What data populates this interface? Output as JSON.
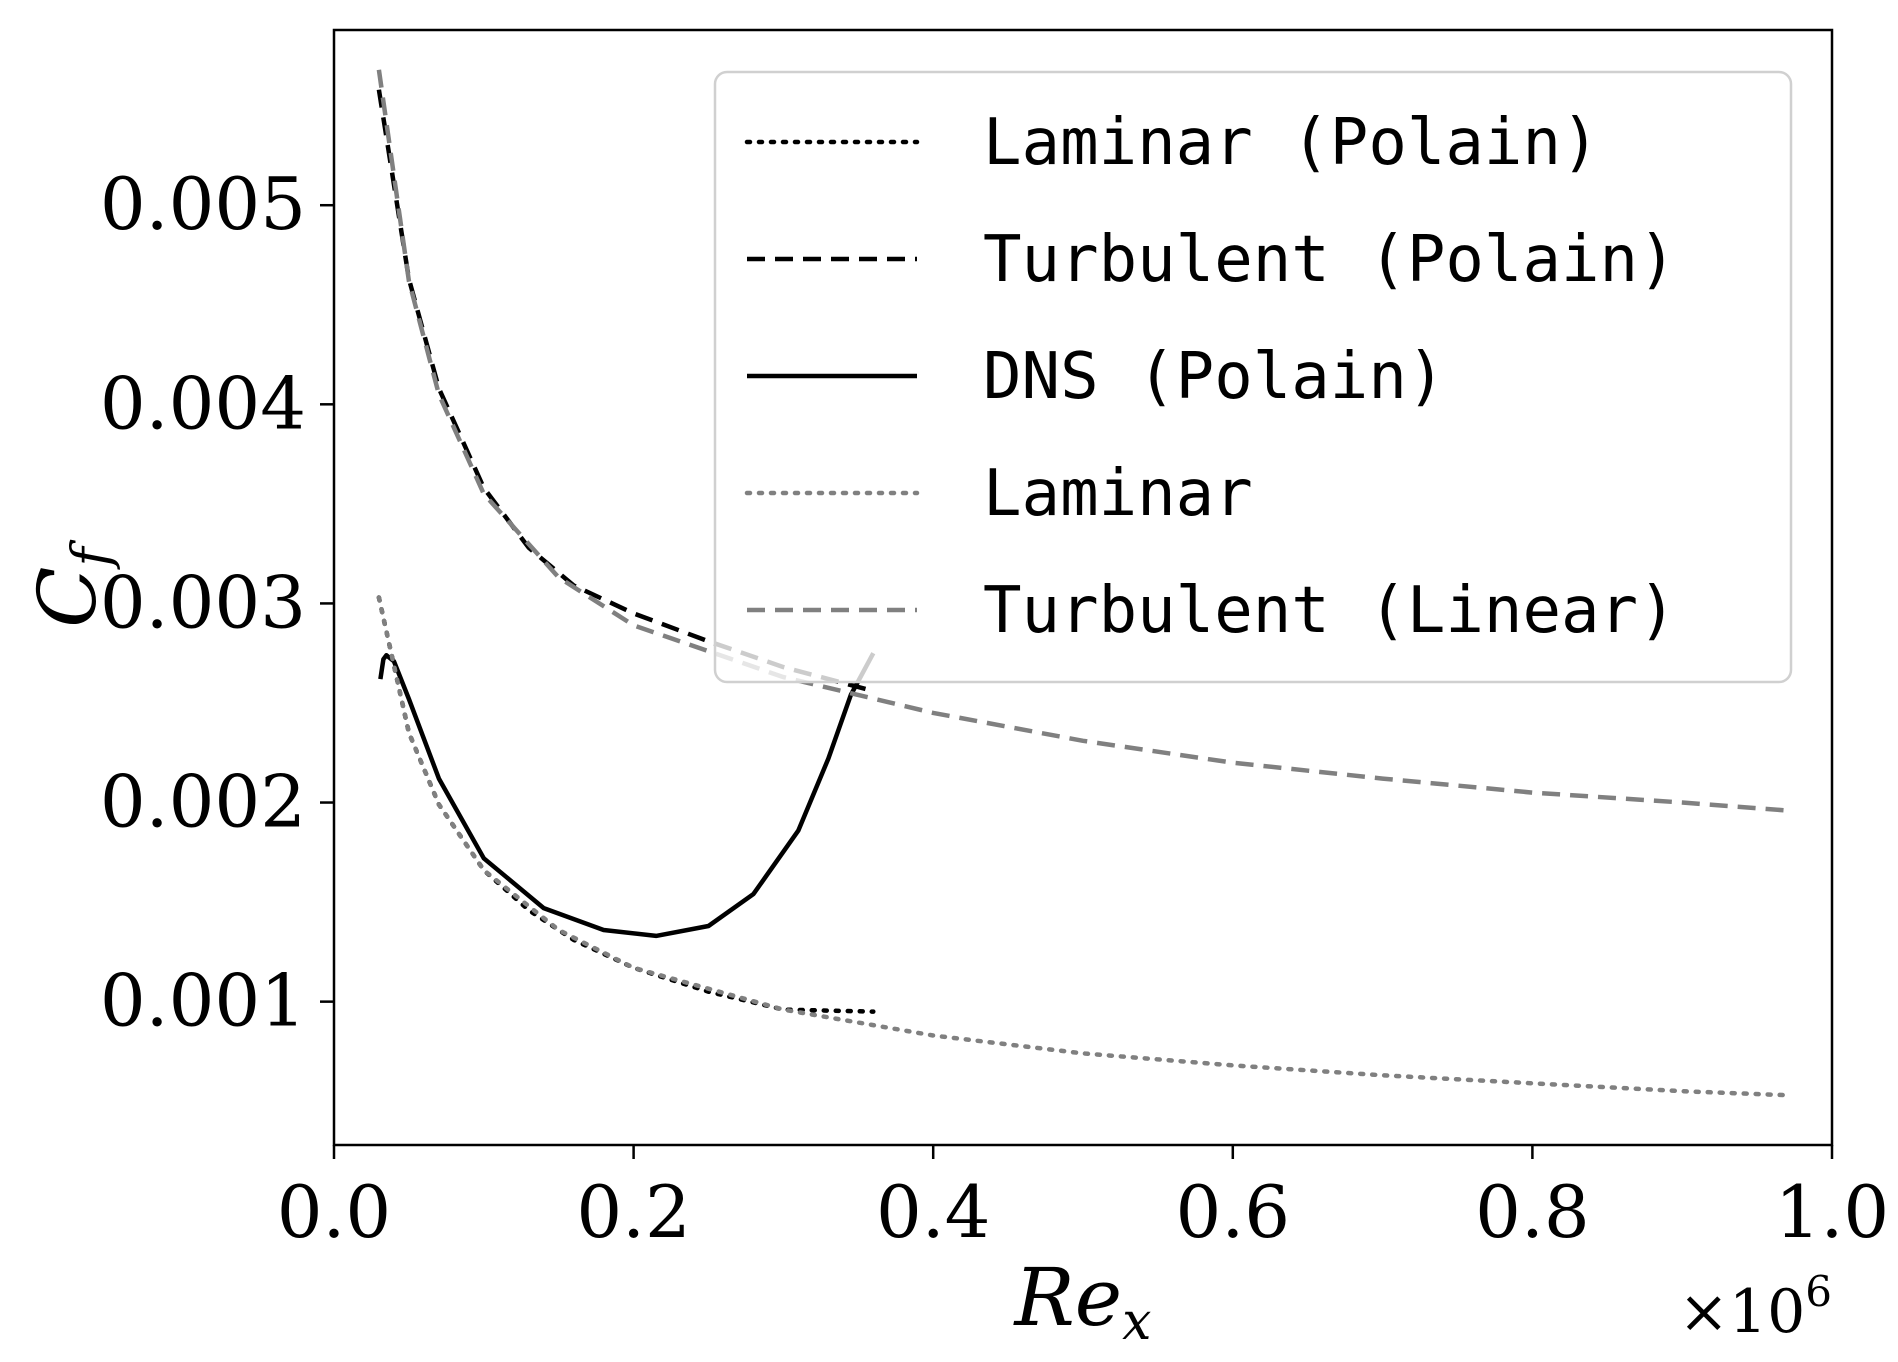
{
  "chart_data": {
    "type": "line",
    "xlabel": "Re",
    "xlabel_sub": "x",
    "ylabel": "C",
    "ylabel_sub": "f",
    "x_multiplier": "×10",
    "x_multiplier_exp": "6",
    "xlim": [
      0.0,
      1.0
    ],
    "ylim": [
      0.00028,
      0.00588
    ],
    "xticks": [
      0.0,
      0.2,
      0.4,
      0.6,
      0.8,
      1.0
    ],
    "xtick_labels": [
      "0.0",
      "0.2",
      "0.4",
      "0.6",
      "0.8",
      "1.0"
    ],
    "yticks": [
      0.001,
      0.002,
      0.003,
      0.004,
      0.005
    ],
    "ytick_labels": [
      "0.001",
      "0.002",
      "0.003",
      "0.004",
      "0.005"
    ],
    "grid": false,
    "legend_position": "top-right",
    "series": [
      {
        "name": "Laminar (Polain)",
        "color": "#000000",
        "style": "dotted",
        "x": [
          0.03,
          0.05,
          0.07,
          0.1,
          0.13,
          0.16,
          0.2,
          0.25,
          0.3,
          0.36
        ],
        "y": [
          0.00303,
          0.00235,
          0.00199,
          0.00166,
          0.00146,
          0.00131,
          0.00117,
          0.00105,
          0.00096,
          0.00095
        ]
      },
      {
        "name": "Turbulent (Polain)",
        "color": "#000000",
        "style": "dashed",
        "x": [
          0.03,
          0.05,
          0.07,
          0.1,
          0.13,
          0.16,
          0.2,
          0.25,
          0.3,
          0.36
        ],
        "y": [
          0.00558,
          0.00463,
          0.00408,
          0.00358,
          0.00328,
          0.00309,
          0.00295,
          0.00281,
          0.00268,
          0.00256
        ]
      },
      {
        "name": "DNS (Polain)",
        "color": "#000000",
        "style": "solid",
        "x": [
          0.031,
          0.033,
          0.035,
          0.04,
          0.05,
          0.07,
          0.1,
          0.14,
          0.18,
          0.215,
          0.25,
          0.28,
          0.31,
          0.33,
          0.345,
          0.36
        ],
        "y": [
          0.00262,
          0.00272,
          0.00274,
          0.00271,
          0.00252,
          0.00212,
          0.00172,
          0.00147,
          0.00136,
          0.00133,
          0.00138,
          0.00154,
          0.00186,
          0.00222,
          0.00254,
          0.00275
        ]
      },
      {
        "name": "Laminar",
        "color": "#808080",
        "style": "dotted",
        "x": [
          0.03,
          0.05,
          0.07,
          0.1,
          0.15,
          0.2,
          0.3,
          0.4,
          0.5,
          0.6,
          0.7,
          0.8,
          0.9,
          0.97
        ],
        "y": [
          0.00303,
          0.00235,
          0.00199,
          0.00166,
          0.00136,
          0.00117,
          0.00096,
          0.00083,
          0.00074,
          0.00068,
          0.00063,
          0.00059,
          0.00055,
          0.00053
        ]
      },
      {
        "name": "Turbulent (Linear)",
        "color": "#808080",
        "style": "dashed",
        "x": [
          0.03,
          0.05,
          0.07,
          0.1,
          0.15,
          0.2,
          0.3,
          0.4,
          0.5,
          0.6,
          0.7,
          0.8,
          0.9,
          0.97
        ],
        "y": [
          0.00568,
          0.00462,
          0.00405,
          0.00355,
          0.00313,
          0.00289,
          0.00263,
          0.00245,
          0.00231,
          0.0022,
          0.00212,
          0.00205,
          0.002,
          0.00196
        ]
      }
    ]
  }
}
